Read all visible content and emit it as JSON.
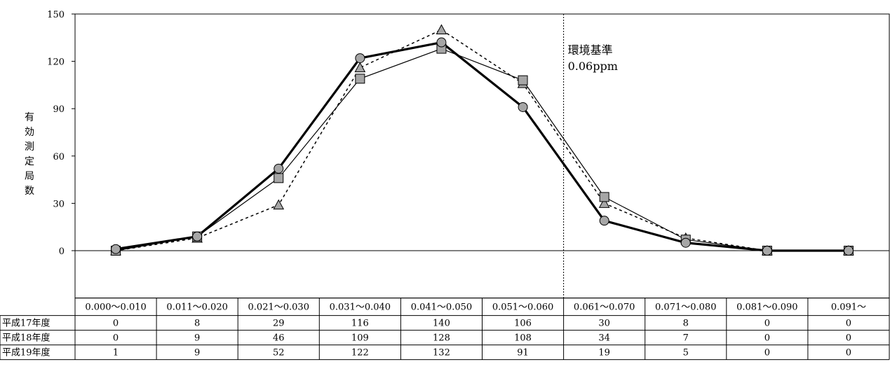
{
  "chart_data": {
    "type": "line",
    "ylabel": "有効測定局数",
    "ylim": [
      -30,
      150
    ],
    "yticks": [
      0,
      30,
      60,
      90,
      120,
      150
    ],
    "categories": [
      "0.000～0.010",
      "0.011～0.020",
      "0.021～0.030",
      "0.031～0.040",
      "0.041～0.050",
      "0.051～0.060",
      "0.061～0.070",
      "0.071～0.080",
      "0.081～0.090",
      "0.091～"
    ],
    "series": [
      {
        "name": "平成17年度",
        "values": [
          0,
          8,
          29,
          116,
          140,
          106,
          30,
          8,
          0,
          0
        ],
        "line": "dotted",
        "marker": "triangle"
      },
      {
        "name": "平成18年度",
        "values": [
          0,
          9,
          46,
          109,
          128,
          108,
          34,
          7,
          0,
          0
        ],
        "line": "thin",
        "marker": "square"
      },
      {
        "name": "平成19年度",
        "values": [
          1,
          9,
          52,
          122,
          132,
          91,
          19,
          5,
          0,
          0
        ],
        "line": "bold",
        "marker": "circle"
      }
    ],
    "reference_line": {
      "x_between": [
        "0.051～0.060",
        "0.061～0.070"
      ],
      "label_lines": [
        "環境基準",
        "0.06ppm"
      ]
    },
    "data_table": true,
    "colors": {
      "marker_fill": "#a6a6a6",
      "line": "#000000"
    }
  }
}
